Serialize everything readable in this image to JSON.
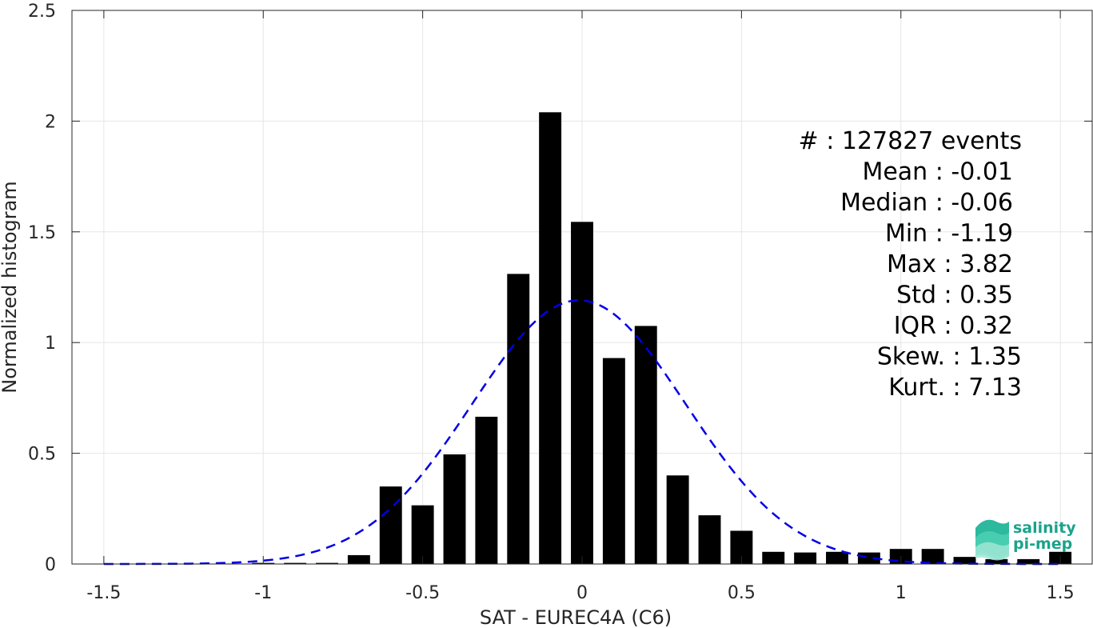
{
  "chart_data": {
    "type": "bar",
    "xlabel": "SAT - EUREC4A (C6)",
    "ylabel": "Normalized histogram",
    "xlim": [
      -1.6,
      1.6
    ],
    "ylim": [
      0,
      2.5
    ],
    "grid": true,
    "x_ticks": [
      -1.5,
      -1,
      -0.5,
      0,
      0.5,
      1,
      1.5
    ],
    "x_tick_labels": [
      "-1.5",
      "-1",
      "-0.5",
      "0",
      "0.5",
      "1",
      "1.5"
    ],
    "y_ticks": [
      0,
      0.5,
      1,
      1.5,
      2,
      2.5
    ],
    "y_tick_labels": [
      "0",
      "0.5",
      "1",
      "1.5",
      "2",
      "2.5"
    ],
    "bar_width": 0.07,
    "bar_color": "#000000",
    "bins": [
      {
        "x": -1.5,
        "y": 0.0
      },
      {
        "x": -1.4,
        "y": 0.0
      },
      {
        "x": -1.3,
        "y": 0.0
      },
      {
        "x": -1.2,
        "y": 0.002
      },
      {
        "x": -1.1,
        "y": 0.002
      },
      {
        "x": -1.0,
        "y": 0.005
      },
      {
        "x": -0.9,
        "y": 0.005
      },
      {
        "x": -0.8,
        "y": 0.005
      },
      {
        "x": -0.7,
        "y": 0.04
      },
      {
        "x": -0.6,
        "y": 0.35
      },
      {
        "x": -0.5,
        "y": 0.265
      },
      {
        "x": -0.4,
        "y": 0.495
      },
      {
        "x": -0.3,
        "y": 0.665
      },
      {
        "x": -0.2,
        "y": 1.31
      },
      {
        "x": -0.1,
        "y": 2.04
      },
      {
        "x": 0.0,
        "y": 1.545
      },
      {
        "x": 0.1,
        "y": 0.93
      },
      {
        "x": 0.2,
        "y": 1.075
      },
      {
        "x": 0.3,
        "y": 0.4
      },
      {
        "x": 0.4,
        "y": 0.22
      },
      {
        "x": 0.5,
        "y": 0.15
      },
      {
        "x": 0.6,
        "y": 0.055
      },
      {
        "x": 0.7,
        "y": 0.052
      },
      {
        "x": 0.8,
        "y": 0.055
      },
      {
        "x": 0.9,
        "y": 0.052
      },
      {
        "x": 1.0,
        "y": 0.068
      },
      {
        "x": 1.1,
        "y": 0.068
      },
      {
        "x": 1.2,
        "y": 0.032
      },
      {
        "x": 1.3,
        "y": 0.022
      },
      {
        "x": 1.4,
        "y": 0.022
      },
      {
        "x": 1.5,
        "y": 0.055
      }
    ],
    "fit_curve": {
      "type": "normal",
      "mean": -0.01,
      "std": 0.335,
      "x_range": [
        -1.5,
        1.5
      ],
      "color": "#0000e6",
      "style": "dashed"
    },
    "annotations": [
      "#  : 127827 events",
      "Mean : -0.01",
      "Median : -0.06",
      "Min : -1.19",
      "Max : 3.82",
      "Std : 0.35",
      "IQR : 0.32",
      "Skew. : 1.35",
      "Kurt. : 7.13"
    ]
  },
  "logo": {
    "line1": "salinity",
    "line2": "pi-mep",
    "color": "#1aa38c"
  }
}
